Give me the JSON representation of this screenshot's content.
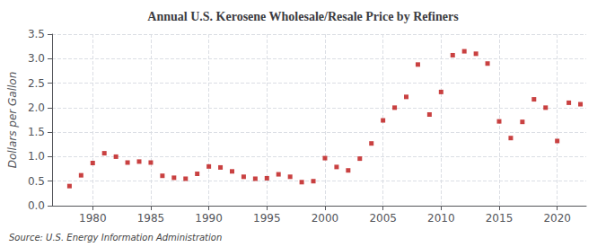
{
  "chart_data": {
    "type": "scatter",
    "title": "Annual U.S. Kerosene Wholesale/Resale Price by Refiners",
    "ylabel": "Dollars per Gallon",
    "annotation": "Source: U.S. Energy Information Administration",
    "x": [
      1978,
      1979,
      1980,
      1981,
      1982,
      1983,
      1984,
      1985,
      1986,
      1987,
      1988,
      1989,
      1990,
      1991,
      1992,
      1993,
      1994,
      1995,
      1996,
      1997,
      1998,
      1999,
      2000,
      2001,
      2002,
      2003,
      2004,
      2005,
      2006,
      2007,
      2008,
      2009,
      2010,
      2011,
      2012,
      2013,
      2014,
      2015,
      2016,
      2017,
      2018,
      2019,
      2020,
      2021,
      2022
    ],
    "values": [
      0.4,
      0.62,
      0.87,
      1.07,
      1.0,
      0.88,
      0.9,
      0.88,
      0.61,
      0.57,
      0.55,
      0.65,
      0.8,
      0.78,
      0.7,
      0.59,
      0.55,
      0.56,
      0.64,
      0.59,
      0.48,
      0.5,
      0.97,
      0.79,
      0.72,
      0.96,
      1.27,
      1.74,
      2.0,
      2.22,
      2.88,
      1.86,
      2.32,
      3.07,
      3.15,
      3.1,
      2.9,
      1.72,
      1.38,
      1.71,
      2.17,
      2.0,
      1.32,
      2.1,
      2.07
    ],
    "color": "#bb1111",
    "marker": "square",
    "xlim": [
      1976.5,
      2022.5
    ],
    "ylim": [
      0.0,
      3.5
    ],
    "xticks": [
      1980,
      1985,
      1990,
      1995,
      2000,
      2005,
      2010,
      2015,
      2020
    ],
    "yticks": [
      {
        "value": 0.0,
        "label": "0.0"
      },
      0.5,
      {
        "value": 1.0,
        "label": "1.0"
      },
      1.5,
      {
        "value": 2.0,
        "label": "2.0"
      },
      2.5,
      {
        "value": 3.0,
        "label": "3.0"
      },
      3.5
    ],
    "grid": true
  }
}
